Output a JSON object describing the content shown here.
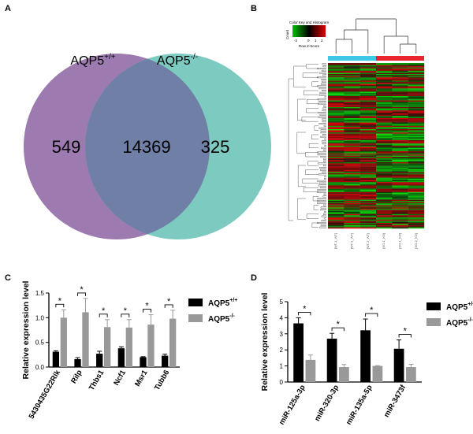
{
  "panels": {
    "a": "A",
    "b": "B",
    "c": "C",
    "d": "D"
  },
  "venn": {
    "left_label": "AQP5+/+",
    "right_label": "AQP5-/-",
    "left_label_base": "AQP5",
    "left_label_sup": "+/+",
    "right_label_base": "AQP5",
    "right_label_sup": "-/-",
    "left_only": "549",
    "overlap": "14369",
    "right_only": "325",
    "colors": {
      "left": "#9d7ab0",
      "right": "#7ccac0",
      "overlap": "#6f7fa6"
    }
  },
  "heatmap": {
    "key_title": "Color Key and Histogram",
    "key_axis_label": "Row Z-Score",
    "key_ylabel": "Count",
    "key_ticks": [
      "-2",
      "0",
      "1",
      "2"
    ],
    "group_colors": [
      "#3fc7e6",
      "#e8252e"
    ],
    "columns": [
      "[WT-1_WT]",
      "[WT-1_WT]",
      "[WT-2_WT]",
      "[KO-1_KO]",
      "[KO-1_KO]",
      "[KO-2_KO]"
    ]
  },
  "chart_data": [
    {
      "panel": "C",
      "type": "bar",
      "ylabel": "Relative expression level",
      "ylim": [
        0,
        1.5
      ],
      "yticks": [
        "0.0",
        "0.5",
        "1.0",
        "1.5"
      ],
      "categories": [
        "5430435G22Rik",
        "Rilp",
        "Thbs1",
        "Ncf1",
        "Msr1",
        "Tubb6"
      ],
      "series": [
        {
          "name": "AQP5+/+",
          "color": "#000000",
          "values": [
            0.31,
            0.16,
            0.27,
            0.38,
            0.2,
            0.23
          ],
          "errors": [
            0.02,
            0.03,
            0.05,
            0.03,
            0.01,
            0.03
          ]
        },
        {
          "name": "AQP5-/-",
          "color": "#999999",
          "values": [
            1.0,
            1.11,
            0.81,
            0.8,
            0.86,
            0.98
          ],
          "errors": [
            0.16,
            0.28,
            0.15,
            0.16,
            0.2,
            0.17
          ]
        }
      ],
      "significance": [
        "*",
        "*",
        "*",
        "*",
        "*",
        "*"
      ]
    },
    {
      "panel": "D",
      "type": "bar",
      "ylabel": "Relative expression level",
      "ylim": [
        0,
        5
      ],
      "yticks": [
        "0",
        "1",
        "2",
        "3",
        "4",
        "5"
      ],
      "categories": [
        "miR-125a-3p",
        "miR-320-3p",
        "miR-135a-5p",
        "miR-3473f"
      ],
      "series": [
        {
          "name": "AQP5+/+",
          "color": "#000000",
          "values": [
            3.65,
            2.7,
            3.22,
            2.07
          ],
          "errors": [
            0.35,
            0.33,
            0.7,
            0.55
          ]
        },
        {
          "name": "AQP5-/-",
          "color": "#999999",
          "values": [
            1.38,
            0.93,
            1.0,
            0.93
          ],
          "errors": [
            0.3,
            0.16,
            0.02,
            0.17
          ]
        }
      ],
      "significance": [
        "*",
        "*",
        "*",
        "*"
      ]
    }
  ]
}
